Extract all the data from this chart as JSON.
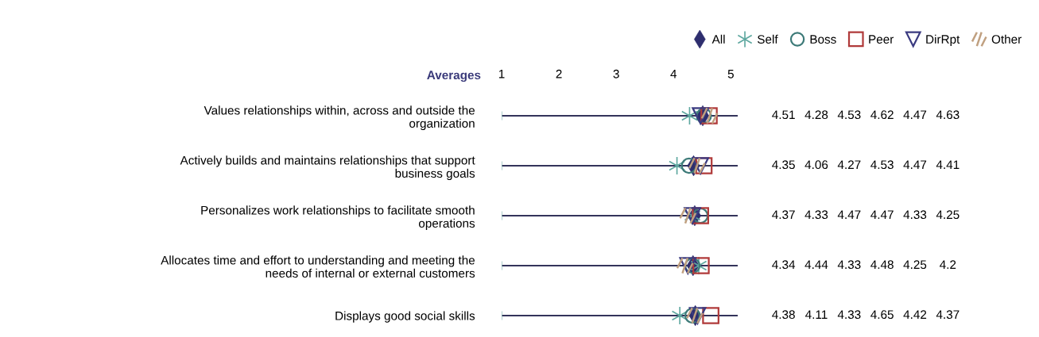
{
  "chart_data": {
    "type": "scatter",
    "title": "Averages",
    "categories": [
      "Values relationships within, across and outside the\norganization",
      "Actively builds and maintains relationships that support\nbusiness goals",
      "Personalizes work relationships to facilitate smooth\noperations",
      "Allocates time and effort to understanding and meeting the\nneeds of internal or external customers",
      "Displays good social skills"
    ],
    "series": [
      {
        "name": "All",
        "color": "#2e2e6e",
        "marker": "diamond",
        "values": [
          4.51,
          4.35,
          4.37,
          4.34,
          4.38
        ]
      },
      {
        "name": "Self",
        "color": "#5fa8a0",
        "values": [
          4.28,
          4.06,
          4.33,
          4.44,
          4.11
        ]
      },
      {
        "name": "Boss",
        "color": "#3d7a78",
        "marker": "circle",
        "values": [
          4.53,
          4.27,
          4.47,
          4.33,
          4.33
        ]
      },
      {
        "name": "Peer",
        "color": "#b03a3a",
        "marker": "square",
        "values": [
          4.62,
          4.53,
          4.47,
          4.48,
          4.65
        ]
      },
      {
        "name": "DirRpt",
        "color": "#3a3a80",
        "marker": "triangle",
        "values": [
          4.47,
          4.47,
          4.33,
          4.25,
          4.42
        ]
      },
      {
        "name": "Other",
        "color": "#c0a080",
        "marker": "cross",
        "values": [
          4.63,
          4.41,
          4.25,
          4.2,
          4.37
        ]
      }
    ],
    "orientation": "horizontal",
    "xlim": [
      1,
      5.12
    ],
    "xticks": [
      1,
      2,
      3,
      4,
      5
    ],
    "grid": "y",
    "legend": "top right",
    "data_labels": true
  }
}
